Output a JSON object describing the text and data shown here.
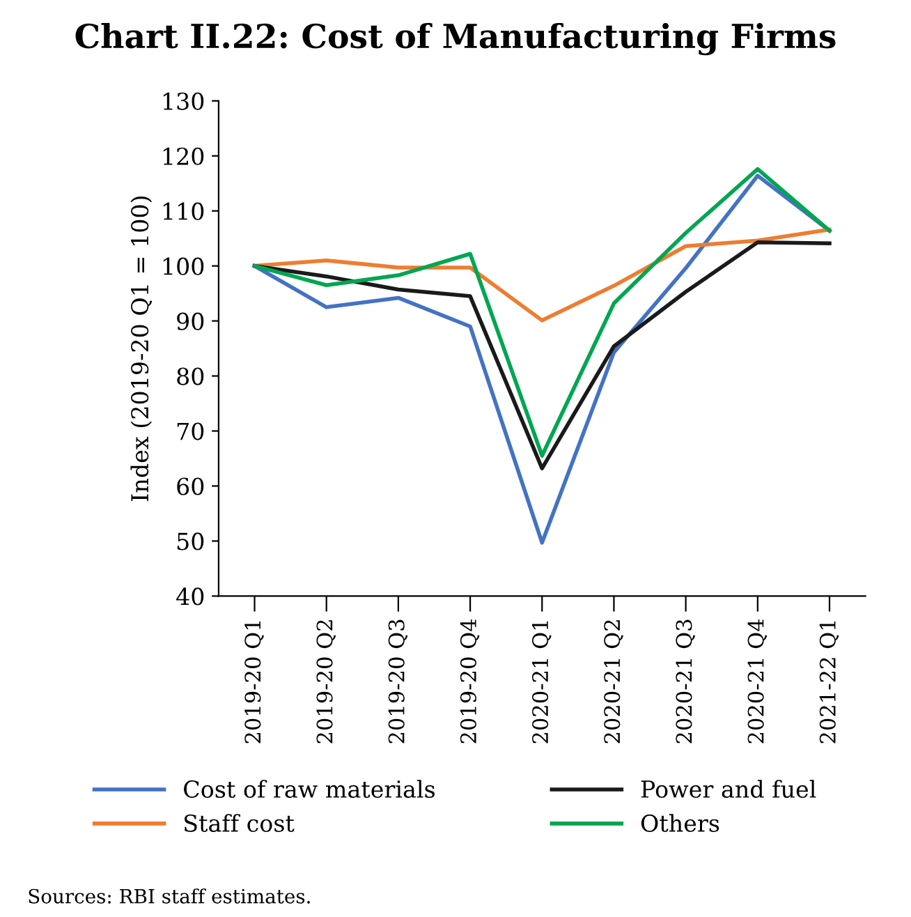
{
  "chart_data": {
    "type": "line",
    "title": "Chart II.22: Cost of Manufacturing Firms",
    "ylabel": "Index (2019-20 Q1 = 100)",
    "categories": [
      "2019-20 Q1",
      "2019-20 Q2",
      "2019-20 Q3",
      "2019-20 Q4",
      "2020-21 Q1",
      "2020-21 Q2",
      "2020-21 Q3",
      "2020-21 Q4",
      "2021-22 Q1"
    ],
    "series": [
      {
        "name": "Cost of raw materials",
        "color": "#4472c4",
        "values": [
          100,
          92.5,
          94.2,
          89,
          49.7,
          84.3,
          99.6,
          116.4,
          106.4
        ]
      },
      {
        "name": "Staff cost",
        "color": "#ed7d31",
        "values": [
          100,
          101,
          99.7,
          99.7,
          90.1,
          96.4,
          103.6,
          104.6,
          106.6
        ]
      },
      {
        "name": "Power and fuel",
        "color": "#1a1a1a",
        "values": [
          100,
          98.1,
          95.7,
          94.5,
          63.2,
          85.4,
          95.3,
          104.3,
          104.1
        ]
      },
      {
        "name": "Others",
        "color": "#00a651",
        "values": [
          100,
          96.5,
          98.3,
          102.2,
          65.5,
          93.2,
          106,
          117.6,
          106.4
        ]
      }
    ],
    "ylim": [
      40,
      130
    ],
    "yticks": [
      40,
      50,
      60,
      70,
      80,
      90,
      100,
      110,
      120,
      130
    ],
    "grid": false,
    "legend": "bottom",
    "marker": "none",
    "line_style": "solid",
    "annotations": [
      "Sources: RBI staff estimates."
    ]
  }
}
